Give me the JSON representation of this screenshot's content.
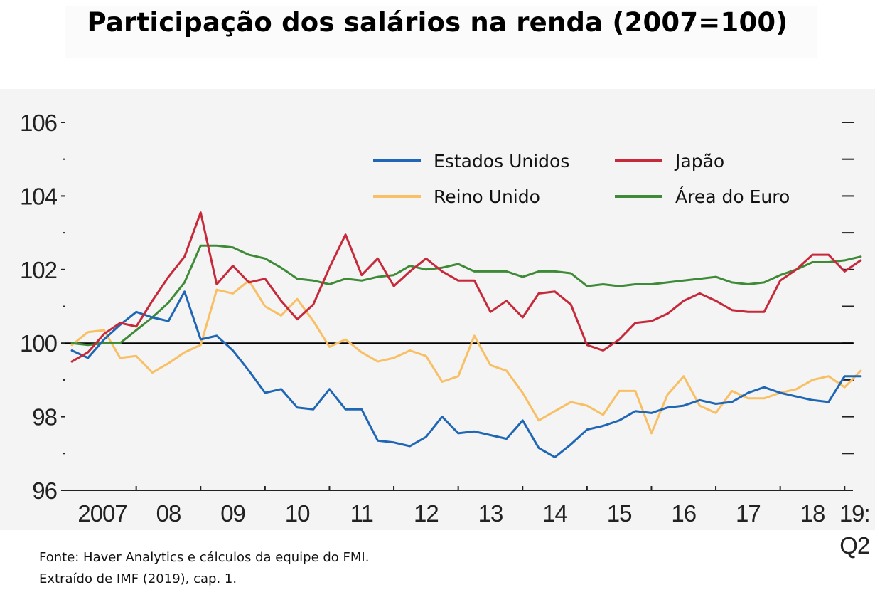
{
  "chart_data": {
    "type": "line",
    "title": "Participação dos salários na renda (2007=100)",
    "xlabel": "",
    "ylabel": "",
    "ylim": [
      96,
      106
    ],
    "yticks": [
      96,
      98,
      100,
      102,
      104,
      106
    ],
    "ytick_labels": [
      "96",
      "98",
      "100",
      "102",
      "104",
      "106"
    ],
    "reference_line": 100,
    "grid": false,
    "legend_position": "top-right",
    "x_start": 2007.0,
    "x_step": 0.25,
    "x_tick_labels": [
      {
        "x": 2007.0,
        "label": "2007"
      },
      {
        "x": 2008.0,
        "label": "08"
      },
      {
        "x": 2009.0,
        "label": "09"
      },
      {
        "x": 2010.0,
        "label": "10"
      },
      {
        "x": 2011.0,
        "label": "11"
      },
      {
        "x": 2012.0,
        "label": "12"
      },
      {
        "x": 2013.0,
        "label": "13"
      },
      {
        "x": 2014.0,
        "label": "14"
      },
      {
        "x": 2015.0,
        "label": "15"
      },
      {
        "x": 2016.0,
        "label": "16"
      },
      {
        "x": 2017.0,
        "label": "17"
      },
      {
        "x": 2018.0,
        "label": "18"
      },
      {
        "x": 2019.0,
        "label": "19:",
        "label2": "Q2"
      }
    ],
    "series": [
      {
        "name": "Estados Unidos",
        "color": "#1f66b5",
        "values": [
          99.8,
          99.6,
          100.1,
          100.5,
          100.85,
          100.7,
          100.6,
          101.4,
          100.1,
          100.2,
          99.8,
          99.25,
          98.65,
          98.75,
          98.25,
          98.2,
          98.75,
          98.2,
          98.2,
          97.35,
          97.3,
          97.2,
          97.45,
          98.0,
          97.55,
          97.6,
          97.5,
          97.4,
          97.9,
          97.15,
          96.9,
          97.25,
          97.65,
          97.75,
          97.9,
          98.15,
          98.1,
          98.25,
          98.3,
          98.45,
          98.35,
          98.4,
          98.65,
          98.8,
          98.65,
          98.55,
          98.45,
          98.4,
          99.1,
          99.1
        ]
      },
      {
        "name": "Japão",
        "color": "#c5293a",
        "values": [
          99.5,
          99.75,
          100.25,
          100.55,
          100.45,
          101.15,
          101.8,
          102.35,
          103.55,
          101.6,
          102.1,
          101.65,
          101.75,
          101.15,
          100.65,
          101.05,
          102.05,
          102.95,
          101.85,
          102.3,
          101.55,
          101.95,
          102.3,
          101.95,
          101.7,
          101.7,
          100.85,
          101.15,
          100.7,
          101.35,
          101.4,
          101.05,
          99.95,
          99.8,
          100.1,
          100.55,
          100.6,
          100.8,
          101.15,
          101.35,
          101.15,
          100.9,
          100.85,
          100.85,
          101.7,
          102.0,
          102.4,
          102.4,
          101.95,
          102.25
        ]
      },
      {
        "name": "Reino Unido",
        "color": "#f8bf64",
        "values": [
          99.95,
          100.3,
          100.35,
          99.6,
          99.65,
          99.2,
          99.45,
          99.75,
          99.95,
          101.45,
          101.35,
          101.7,
          101.0,
          100.75,
          101.2,
          100.6,
          99.9,
          100.1,
          99.75,
          99.5,
          99.6,
          99.8,
          99.65,
          98.95,
          99.1,
          100.2,
          99.4,
          99.25,
          98.65,
          97.9,
          98.15,
          98.4,
          98.3,
          98.05,
          98.7,
          98.7,
          97.55,
          98.6,
          99.1,
          98.3,
          98.1,
          98.7,
          98.5,
          98.5,
          98.65,
          98.75,
          99.0,
          99.1,
          98.8,
          99.25
        ]
      },
      {
        "name": "Área do Euro",
        "color": "#3e8a37",
        "values": [
          100.0,
          99.95,
          100.0,
          100.0,
          100.35,
          100.7,
          101.1,
          101.65,
          102.65,
          102.65,
          102.6,
          102.4,
          102.3,
          102.05,
          101.75,
          101.7,
          101.6,
          101.75,
          101.7,
          101.8,
          101.85,
          102.1,
          102.0,
          102.05,
          102.15,
          101.95,
          101.95,
          101.95,
          101.8,
          101.95,
          101.95,
          101.9,
          101.55,
          101.6,
          101.55,
          101.6,
          101.6,
          101.65,
          101.7,
          101.75,
          101.8,
          101.65,
          101.6,
          101.65,
          101.85,
          102.0,
          102.2,
          102.2,
          102.25,
          102.35
        ]
      }
    ],
    "legend_order": [
      "Estados Unidos",
      "Japão",
      "Reino Unido",
      "Área do Euro"
    ]
  },
  "source": {
    "line1": "Fonte: Haver Analytics e cálculos da equipe do FMI.",
    "line2": "Extraído de IMF (2019), cap. 1."
  }
}
